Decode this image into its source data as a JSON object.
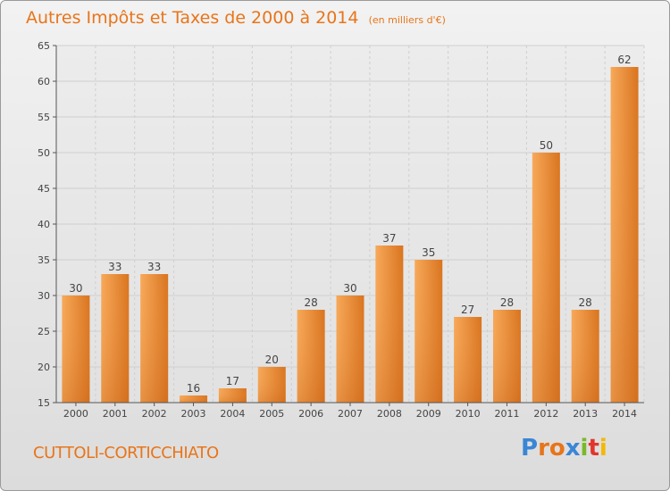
{
  "chart_data": {
    "type": "bar",
    "title": "Autres Impôts et Taxes de 2000 à 2014",
    "subtitle": "(en milliers d'€)",
    "categories": [
      "2000",
      "2001",
      "2002",
      "2003",
      "2004",
      "2005",
      "2006",
      "2007",
      "2008",
      "2009",
      "2010",
      "2011",
      "2012",
      "2013",
      "2014"
    ],
    "values": [
      30,
      33,
      33,
      16,
      17,
      20,
      28,
      30,
      37,
      35,
      27,
      28,
      50,
      28,
      62
    ],
    "data_labels": [
      "30",
      "33",
      "33",
      "16",
      "17",
      "20",
      "28",
      "30",
      "37",
      "35",
      "27",
      "28",
      "50",
      "28",
      "62"
    ],
    "ylim": [
      15,
      65
    ],
    "yticks": [
      15,
      20,
      25,
      30,
      35,
      40,
      45,
      50,
      55,
      60,
      65
    ],
    "grid": true,
    "bar_color": "#e8842e",
    "grid_color": "#cfcfcf"
  },
  "footer": {
    "place": "CUTTOLI-CORTICCHIATO",
    "logo_text": "Proxiti",
    "logo_colors": [
      "#3a86d6",
      "#e8751a",
      "#e8751a",
      "#3a86d6",
      "#7ab929",
      "#e2342d",
      "#f5b800"
    ]
  }
}
